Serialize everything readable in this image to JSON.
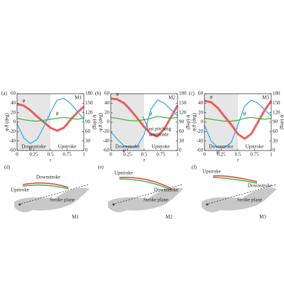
{
  "chart_data": [
    {
      "type": "line",
      "panel_label": "(a)",
      "model": "M1",
      "xlabel": "τ",
      "ylabel": "φ,θ (deg)",
      "y2label": "ψ (deg)",
      "xlim": [
        0,
        1
      ],
      "xticks": [
        0,
        0.25,
        0.5,
        0.75,
        1
      ],
      "ylim": [
        -60,
        60
      ],
      "yticks": [
        -60,
        -40,
        -20,
        0,
        20,
        40,
        60
      ],
      "y2lim": [
        0,
        180
      ],
      "y2ticks": [
        0,
        30,
        60,
        90,
        120,
        150,
        180
      ],
      "downstroke_span": [
        0,
        0.5
      ],
      "downstroke_label": "Downstroke",
      "upstroke_label": "Upstroke",
      "x": [
        0,
        0.1,
        0.2,
        0.3,
        0.4,
        0.5,
        0.6,
        0.7,
        0.8,
        0.9,
        1
      ],
      "series": [
        {
          "name": "φ",
          "color": "#e8383d",
          "values": [
            38,
            35,
            25,
            12,
            0,
            -12,
            -18,
            -12,
            5,
            20,
            33
          ]
        },
        {
          "name": "θ",
          "color": "#3cb83c",
          "values": [
            8,
            5,
            3,
            2,
            4,
            6,
            8,
            10,
            8,
            6,
            8
          ]
        },
        {
          "name": "ψ",
          "color": "#3aaee0",
          "axis": "y2",
          "values": [
            85,
            40,
            22,
            35,
            75,
            120,
            160,
            165,
            150,
            125,
            100
          ]
        }
      ]
    },
    {
      "type": "line",
      "panel_label": "(b)",
      "model": "M2",
      "xlabel": "τ",
      "ylabel": "φ,θ (deg)",
      "y2label": "ψ (deg)",
      "xlim": [
        0,
        1
      ],
      "xticks": [
        0,
        0.25,
        0.5,
        0.75,
        1
      ],
      "ylim": [
        -60,
        60
      ],
      "yticks": [
        -60,
        -40,
        -20,
        0,
        20,
        40,
        60
      ],
      "y2lim": [
        0,
        180
      ],
      "y2ticks": [
        0,
        30,
        60,
        90,
        120,
        150,
        180
      ],
      "downstroke_span": [
        0,
        0.5
      ],
      "downstroke_label": "Downstroke",
      "upstroke_label": "Upstroke",
      "annotations": [
        "fast pitching",
        "amplitude"
      ],
      "x": [
        0,
        0.1,
        0.2,
        0.3,
        0.4,
        0.5,
        0.6,
        0.7,
        0.8,
        0.9,
        1
      ],
      "series": [
        {
          "name": "φ",
          "color": "#e8383d",
          "values": [
            50,
            48,
            40,
            25,
            8,
            -10,
            -25,
            -30,
            -15,
            10,
            35
          ]
        },
        {
          "name": "θ",
          "color": "#3cb83c",
          "values": [
            10,
            8,
            5,
            3,
            3,
            5,
            8,
            12,
            10,
            8,
            10
          ]
        },
        {
          "name": "ψ",
          "color": "#3aaee0",
          "axis": "y2",
          "values": [
            60,
            35,
            15,
            10,
            15,
            50,
            130,
            160,
            150,
            130,
            110
          ]
        }
      ]
    },
    {
      "type": "line",
      "panel_label": "(c)",
      "model": "M3",
      "xlabel": "τ",
      "ylabel": "φ,θ (deg)",
      "y2label": "ψ (deg)",
      "xlim": [
        0,
        1
      ],
      "xticks": [
        0,
        0.25,
        0.5,
        0.75,
        1
      ],
      "ylim": [
        -60,
        60
      ],
      "yticks": [
        -60,
        -40,
        -20,
        0,
        20,
        40,
        60
      ],
      "y2lim": [
        0,
        180
      ],
      "y2ticks": [
        0,
        30,
        60,
        90,
        120,
        150,
        180
      ],
      "downstroke_span": [
        0,
        0.5
      ],
      "downstroke_label": "Downstroke",
      "upstroke_label": "Upstroke",
      "x": [
        0,
        0.1,
        0.2,
        0.3,
        0.4,
        0.5,
        0.6,
        0.7,
        0.8,
        0.9,
        1
      ],
      "series": [
        {
          "name": "φ",
          "color": "#e8383d",
          "values": [
            45,
            42,
            30,
            12,
            -5,
            -25,
            -35,
            -25,
            0,
            25,
            45
          ]
        },
        {
          "name": "θ",
          "color": "#3cb83c",
          "values": [
            8,
            6,
            4,
            2,
            2,
            4,
            8,
            10,
            8,
            6,
            8
          ]
        },
        {
          "name": "ψ",
          "color": "#3aaee0",
          "axis": "y2",
          "values": [
            80,
            30,
            10,
            10,
            25,
            80,
            140,
            160,
            150,
            130,
            110
          ]
        }
      ]
    }
  ],
  "diagrams": [
    {
      "label": "(d)",
      "downstroke": "Downstroke",
      "upstroke": "Upstroke",
      "plane": "Stroke plane",
      "model": "M1"
    },
    {
      "label": "(e)",
      "downstroke": "Downstroke",
      "upstroke": "Upstroke",
      "plane": "Stroke plane",
      "model": "M2"
    },
    {
      "label": "(f)",
      "downstroke": "Downstroke",
      "upstroke": "Upstroke",
      "plane": "Stroke plane",
      "model": "M3"
    }
  ]
}
